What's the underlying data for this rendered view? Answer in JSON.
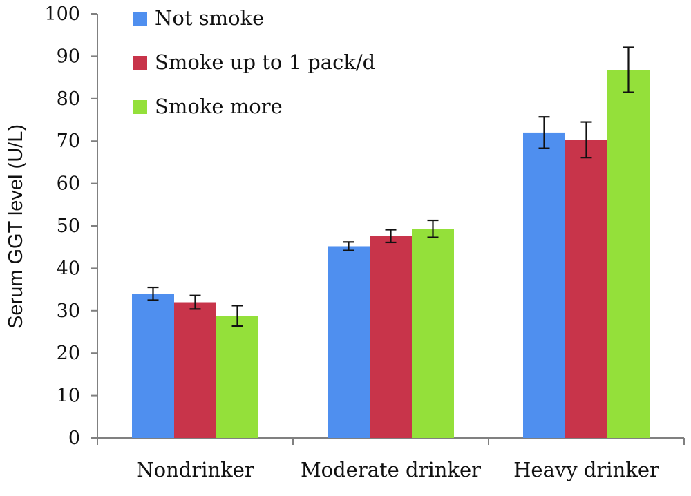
{
  "chart_data": {
    "type": "bar",
    "title": "",
    "xlabel": "",
    "ylabel": "Serum GGT level (U/L)",
    "ylim": [
      0,
      100
    ],
    "yticks": [
      0,
      10,
      20,
      30,
      40,
      50,
      60,
      70,
      80,
      90,
      100
    ],
    "categories": [
      "Nondrinker",
      "Moderate drinker",
      "Heavy drinker"
    ],
    "series": [
      {
        "name": "Not smoke",
        "color": "#4F8FEF",
        "values": [
          34,
          45.2,
          72
        ],
        "error": [
          1.5,
          1,
          3.7
        ]
      },
      {
        "name": "Smoke up to 1 pack/d",
        "color": "#C8344A",
        "values": [
          32,
          47.6,
          70.3
        ],
        "error": [
          1.6,
          1.5,
          4.2
        ]
      },
      {
        "name": "Smoke more",
        "color": "#94E03A",
        "values": [
          28.8,
          49.3,
          86.8
        ],
        "error": [
          2.4,
          2,
          5.3
        ]
      }
    ],
    "grid": false,
    "legend": "top-left"
  }
}
